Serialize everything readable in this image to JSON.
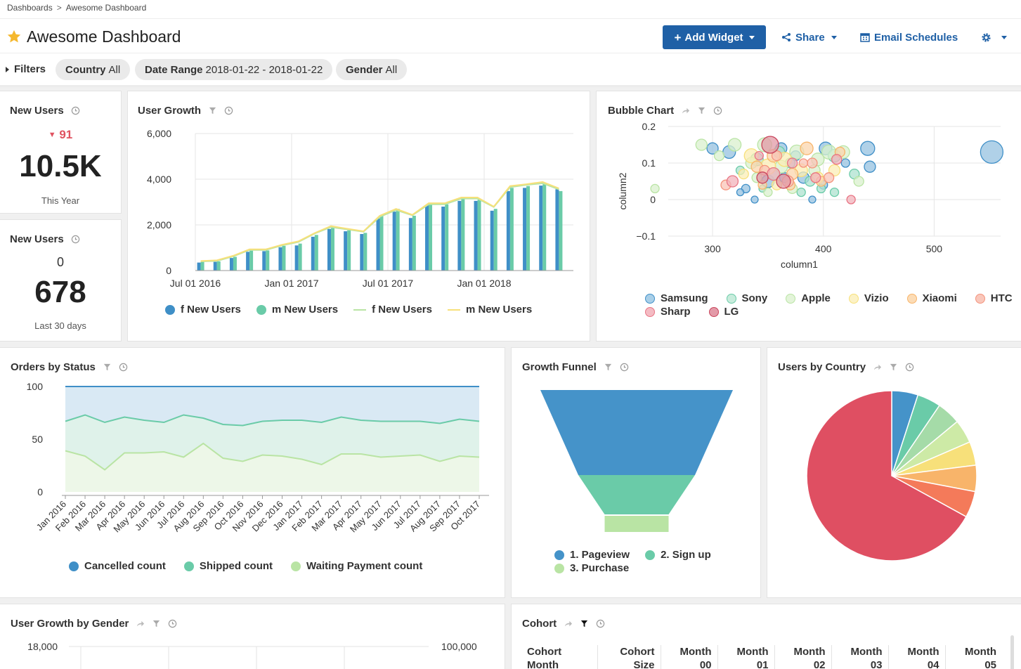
{
  "breadcrumb": {
    "root": "Dashboards",
    "separator": ">",
    "current": "Awesome Dashboard"
  },
  "header": {
    "title": "Awesome Dashboard",
    "add_widget": "Add Widget",
    "share": "Share",
    "email_schedules": "Email Schedules"
  },
  "filters": {
    "label": "Filters",
    "items": [
      {
        "key": "Country",
        "value": "All"
      },
      {
        "key": "Date Range",
        "value": "2018-01-22 - 2018-01-22"
      },
      {
        "key": "Gender",
        "value": "All"
      }
    ]
  },
  "kpi1": {
    "title": "New Users",
    "delta": "91",
    "value": "10.5K",
    "sub": "This Year"
  },
  "kpi2": {
    "title": "New Users",
    "delta": "0",
    "value": "678",
    "sub": "Last 30 days"
  },
  "widgets": {
    "user_growth": "User Growth",
    "bubble": "Bubble Chart",
    "orders": "Orders by Status",
    "funnel": "Growth Funnel",
    "country": "Users by Country",
    "gender": "User Growth by Gender",
    "cohort": "Cohort"
  },
  "colors": {
    "blue": "#3f8fc7",
    "teal": "#6acba8",
    "lightgreen": "#b9e4a4",
    "yellow": "#f7e07a",
    "orange": "#f8b46a",
    "red": "#e04e62",
    "accent": "#1f60a6"
  },
  "chart_data": [
    {
      "id": "user_growth",
      "type": "bar",
      "title": "User Growth",
      "ylim": [
        0,
        6000
      ],
      "yticks": [
        "0",
        "2,000",
        "4,000",
        "6,000"
      ],
      "xticks": [
        "Jul 01 2016",
        "Jan 01 2017",
        "Jul 01 2017",
        "Jan 01 2018"
      ],
      "series": [
        {
          "name": "f New Users",
          "kind": "bar",
          "color": "#3f8fc7",
          "values": [
            350,
            380,
            550,
            820,
            850,
            1020,
            1100,
            1480,
            1820,
            1720,
            1600,
            2280,
            2580,
            2300,
            2850,
            2800,
            3050,
            3050,
            2620,
            3480,
            3620,
            3720,
            3560
          ]
        },
        {
          "name": "m New Users",
          "kind": "bar",
          "color": "#6acba8",
          "values": [
            380,
            400,
            600,
            870,
            880,
            1080,
            1180,
            1560,
            1860,
            1760,
            1650,
            2400,
            2700,
            2400,
            2950,
            2900,
            3150,
            3100,
            2700,
            3620,
            3700,
            3780,
            3480
          ]
        },
        {
          "name": "f New Users",
          "kind": "line",
          "color": "#b9e4a4",
          "values": [
            400,
            420,
            620,
            900,
            900,
            1100,
            1250,
            1620,
            1900,
            1800,
            1700,
            2350,
            2650,
            2420,
            2900,
            2900,
            3150,
            3150,
            2780,
            3650,
            3750,
            3820,
            3550
          ]
        },
        {
          "name": "m New Users",
          "kind": "line",
          "color": "#f7e07a",
          "values": [
            420,
            450,
            650,
            930,
            930,
            1130,
            1280,
            1640,
            1950,
            1830,
            1720,
            2400,
            2700,
            2440,
            2950,
            2950,
            3200,
            3200,
            2800,
            3700,
            3780,
            3880,
            3600
          ]
        }
      ]
    },
    {
      "id": "bubble",
      "type": "scatter",
      "title": "Bubble Chart",
      "xlabel": "column1",
      "ylabel": "column2",
      "xlim": [
        260,
        560
      ],
      "ylim": [
        -0.1,
        0.2
      ],
      "xticks": [
        "300",
        "400",
        "500"
      ],
      "yticks": [
        "−0.1",
        "0",
        "0.1",
        "0.2"
      ],
      "series": [
        {
          "name": "Samsung",
          "color": "#3f8fc7",
          "points": [
            [
              300,
              0.14,
              8
            ],
            [
              315,
              0.13,
              9
            ],
            [
              330,
              0.03,
              6
            ],
            [
              338,
              0.0,
              5
            ],
            [
              350,
              0.05,
              9
            ],
            [
              362,
              0.14,
              8
            ],
            [
              375,
              0.12,
              7
            ],
            [
              382,
              0.06,
              8
            ],
            [
              390,
              0.0,
              5
            ],
            [
              402,
              0.14,
              9
            ],
            [
              420,
              0.1,
              6
            ],
            [
              440,
              0.14,
              10
            ],
            [
              442,
              0.09,
              8
            ],
            [
              552,
              0.13,
              16
            ],
            [
              325,
              0.02,
              5
            ],
            [
              400,
              0.04,
              6
            ],
            [
              365,
              0.06,
              7
            ]
          ]
        },
        {
          "name": "Sony",
          "color": "#6acba8",
          "points": [
            [
              325,
              0.08,
              6
            ],
            [
              340,
              0.11,
              9
            ],
            [
              355,
              0.07,
              8
            ],
            [
              370,
              0.1,
              7
            ],
            [
              388,
              0.05,
              7
            ],
            [
              398,
              0.03,
              6
            ],
            [
              410,
              0.12,
              9
            ],
            [
              428,
              0.07,
              7
            ],
            [
              345,
              0.03,
              5
            ],
            [
              380,
              0.02,
              6
            ],
            [
              410,
              0.02,
              6
            ],
            [
              360,
              0.13,
              8
            ]
          ]
        },
        {
          "name": "Apple",
          "color": "#b9e4a4",
          "points": [
            [
              290,
              0.15,
              8
            ],
            [
              306,
              0.12,
              7
            ],
            [
              320,
              0.15,
              9
            ],
            [
              335,
              0.1,
              8
            ],
            [
              347,
              0.15,
              10
            ],
            [
              362,
              0.09,
              9
            ],
            [
              376,
              0.13,
              10
            ],
            [
              392,
              0.08,
              8
            ],
            [
              405,
              0.13,
              10
            ],
            [
              418,
              0.13,
              9
            ],
            [
              432,
              0.05,
              7
            ],
            [
              248,
              0.03,
              6
            ],
            [
              372,
              0.03,
              7
            ],
            [
              350,
              0.02,
              6
            ],
            [
              395,
              0.11,
              9
            ],
            [
              340,
              0.06,
              7
            ]
          ]
        },
        {
          "name": "Vizio",
          "color": "#f7e07a",
          "points": [
            [
              335,
              0.12,
              10
            ],
            [
              350,
              0.09,
              11
            ],
            [
              365,
              0.11,
              10
            ],
            [
              380,
              0.08,
              9
            ],
            [
              395,
              0.06,
              8
            ],
            [
              328,
              0.07,
              7
            ],
            [
              410,
              0.08,
              8
            ],
            [
              358,
              0.04,
              7
            ]
          ]
        },
        {
          "name": "Xiaomi",
          "color": "#f8b46a",
          "points": [
            [
              340,
              0.09,
              8
            ],
            [
              355,
              0.12,
              9
            ],
            [
              372,
              0.07,
              8
            ],
            [
              385,
              0.14,
              9
            ],
            [
              398,
              0.05,
              7
            ],
            [
              415,
              0.13,
              7
            ],
            [
              345,
              0.04,
              6
            ],
            [
              370,
              0.04,
              7
            ]
          ]
        },
        {
          "name": "HTC",
          "color": "#f4937c",
          "points": [
            [
              312,
              0.04,
              7
            ],
            [
              347,
              0.08,
              7
            ],
            [
              368,
              0.05,
              8
            ],
            [
              390,
              0.1,
              7
            ],
            [
              405,
              0.06,
              7
            ],
            [
              358,
              0.12,
              7
            ],
            [
              382,
              0.1,
              6
            ]
          ]
        },
        {
          "name": "Sharp",
          "color": "#e87484",
          "points": [
            [
              318,
              0.05,
              8
            ],
            [
              355,
              0.07,
              9
            ],
            [
              372,
              0.1,
              7
            ],
            [
              393,
              0.06,
              7
            ],
            [
              412,
              0.11,
              7
            ],
            [
              425,
              0.0,
              6
            ],
            [
              342,
              0.12,
              6
            ]
          ]
        },
        {
          "name": "LG",
          "color": "#c9455c",
          "points": [
            [
              352,
              0.15,
              12
            ],
            [
              364,
              0.05,
              10
            ],
            [
              345,
              0.06,
              8
            ]
          ]
        }
      ]
    },
    {
      "id": "orders",
      "type": "area",
      "title": "Orders by Status",
      "ylim": [
        0,
        100
      ],
      "yticks": [
        "0",
        "50",
        "100"
      ],
      "categories": [
        "Jan 2016",
        "Feb 2016",
        "Mar 2016",
        "Apr 2016",
        "May 2016",
        "Jun 2016",
        "Jul 2016",
        "Aug 2016",
        "Sep 2016",
        "Oct 2016",
        "Nov 2016",
        "Dec 2016",
        "Jan 2017",
        "Feb 2017",
        "Mar 2017",
        "Apr 2017",
        "May 2017",
        "Jun 2017",
        "Jul 2017",
        "Aug 2017",
        "Sep 2017",
        "Oct 2017"
      ],
      "series": [
        {
          "name": "Cancelled count",
          "color": "#3f8fc7",
          "values": [
            100,
            100,
            100,
            100,
            100,
            100,
            100,
            100,
            100,
            100,
            100,
            100,
            100,
            100,
            100,
            100,
            100,
            100,
            100,
            100,
            100,
            100
          ]
        },
        {
          "name": "Shipped count",
          "color": "#6acba8",
          "values": [
            67,
            73,
            66,
            71,
            68,
            66,
            73,
            70,
            64,
            63,
            67,
            68,
            68,
            66,
            71,
            68,
            67,
            67,
            67,
            65,
            69,
            67
          ]
        },
        {
          "name": "Waiting Payment count",
          "color": "#b9e4a4",
          "values": [
            39,
            34,
            21,
            37,
            37,
            38,
            33,
            46,
            32,
            29,
            35,
            34,
            31,
            26,
            36,
            36,
            33,
            34,
            35,
            29,
            34,
            33
          ]
        }
      ]
    },
    {
      "id": "funnel",
      "type": "funnel",
      "title": "Growth Funnel",
      "stages": [
        {
          "name": "1. Pageview",
          "value": 100,
          "color": "#4593c9"
        },
        {
          "name": "2. Sign up",
          "value": 30,
          "color": "#6acba8"
        },
        {
          "name": "3. Purchase",
          "value": 15,
          "color": "#b9e4a4"
        }
      ]
    },
    {
      "id": "country",
      "type": "pie",
      "title": "Users by Country",
      "slices": [
        {
          "value": 5,
          "color": "#4593c9"
        },
        {
          "value": 4.5,
          "color": "#6acba8"
        },
        {
          "value": 4.5,
          "color": "#a5dba8"
        },
        {
          "value": 4.5,
          "color": "#cdeaa6"
        },
        {
          "value": 4.5,
          "color": "#f7e07a"
        },
        {
          "value": 5,
          "color": "#f8b46a"
        },
        {
          "value": 5,
          "color": "#f47a5a"
        },
        {
          "value": 67,
          "color": "#df4f62"
        }
      ]
    },
    {
      "id": "gender",
      "type": "line",
      "title": "User Growth by Gender",
      "yticks_left": [
        "18,000"
      ],
      "yticks_right": [
        "100,000"
      ]
    }
  ],
  "cohort_table": {
    "headers": [
      [
        "Cohort",
        "Month"
      ],
      [
        "Cohort",
        "Size"
      ],
      [
        "Month",
        "00"
      ],
      [
        "Month",
        "01"
      ],
      [
        "Month",
        "02"
      ],
      [
        "Month",
        "03"
      ],
      [
        "Month",
        "04"
      ],
      [
        "Month",
        "05"
      ]
    ]
  }
}
